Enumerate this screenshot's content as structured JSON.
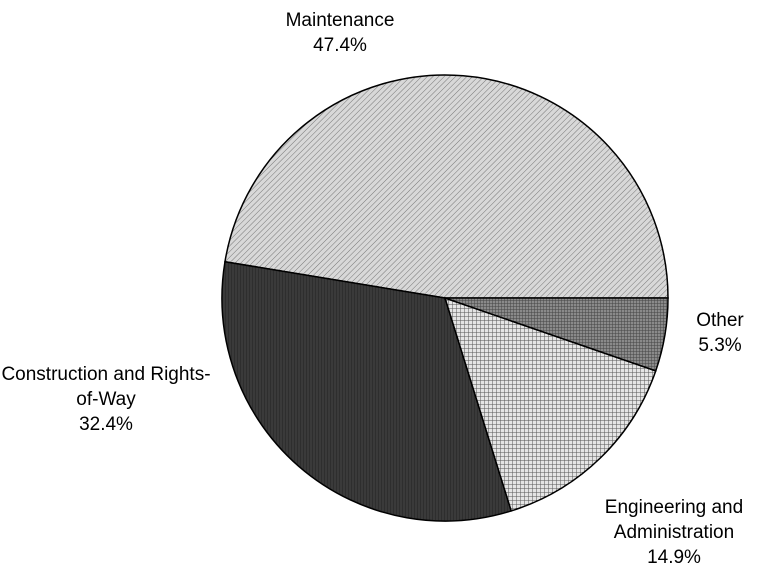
{
  "chart_data": {
    "type": "pie",
    "categories": [
      "Maintenance",
      "Construction and Rights-of-Way",
      "Engineering and Administration",
      "Other"
    ],
    "values": [
      47.4,
      32.4,
      14.9,
      5.3
    ],
    "value_labels": [
      "47.4%",
      "32.4%",
      "14.9%",
      "5.3%"
    ],
    "colors": [
      "#d8d8d8",
      "#3a3a3a",
      "#e4e4e4",
      "#8a8a8a"
    ]
  }
}
